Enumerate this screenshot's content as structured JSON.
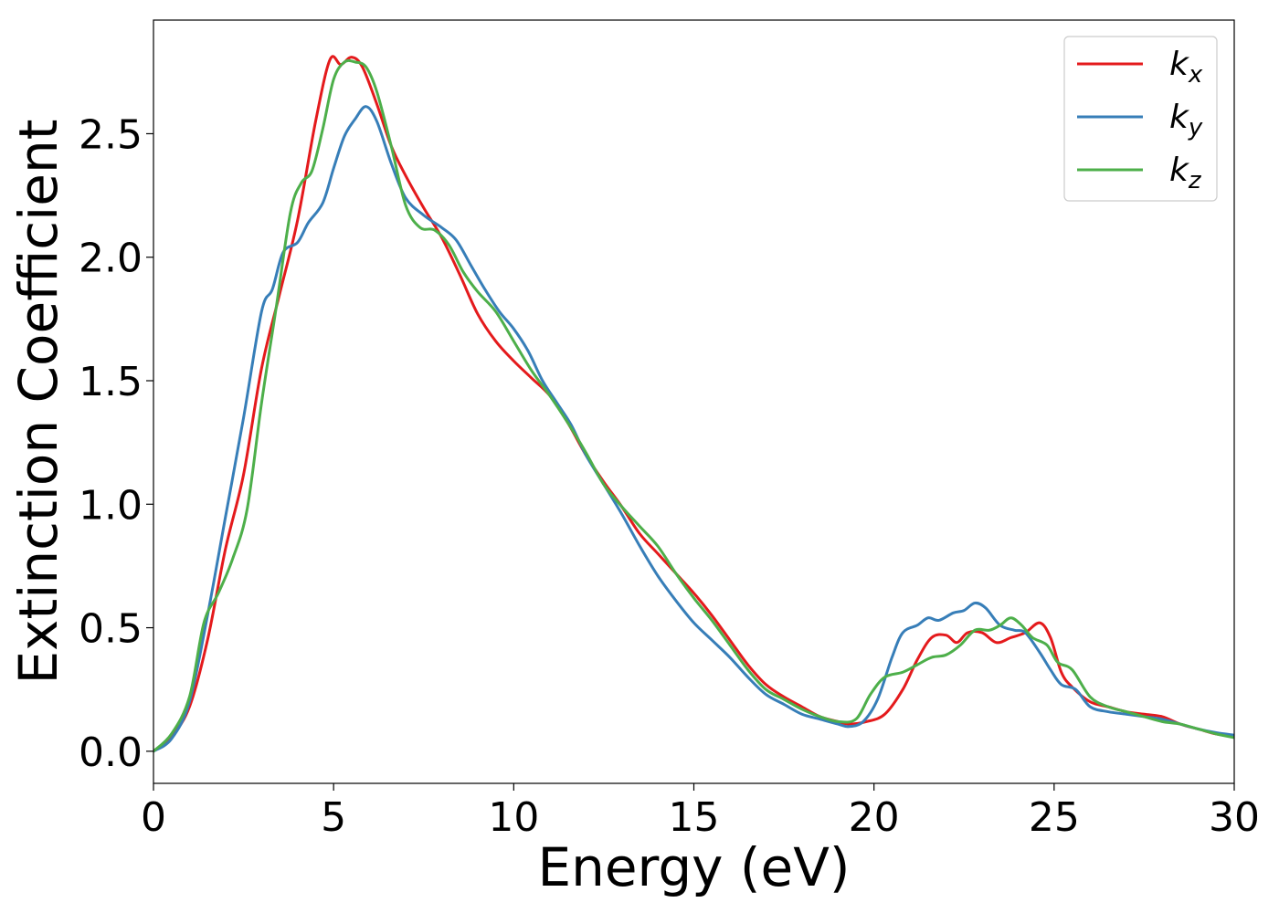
{
  "chart_data": {
    "type": "line",
    "title": "",
    "xlabel": "Energy (eV)",
    "ylabel": "Extinction Coefficient",
    "xlim": [
      0,
      30
    ],
    "ylim": [
      -0.13,
      2.96
    ],
    "xticks": [
      0,
      5,
      10,
      15,
      20,
      25,
      30
    ],
    "xtick_labels": [
      "0",
      "5",
      "10",
      "15",
      "20",
      "25",
      "30"
    ],
    "yticks": [
      0.0,
      0.5,
      1.0,
      1.5,
      2.0,
      2.5
    ],
    "ytick_labels": [
      "0.0",
      "0.5",
      "1.0",
      "1.5",
      "2.0",
      "2.5"
    ],
    "grid": false,
    "legend_position": "top-right",
    "series": [
      {
        "name": "k_x",
        "legend_base": "k",
        "legend_sub": "x",
        "color": "#e41a1c",
        "points": [
          [
            0,
            0.0
          ],
          [
            0.5,
            0.06
          ],
          [
            1.0,
            0.18
          ],
          [
            1.5,
            0.45
          ],
          [
            2.0,
            0.82
          ],
          [
            2.5,
            1.12
          ],
          [
            3.0,
            1.55
          ],
          [
            3.5,
            1.85
          ],
          [
            4.0,
            2.15
          ],
          [
            4.5,
            2.55
          ],
          [
            4.9,
            2.8
          ],
          [
            5.2,
            2.78
          ],
          [
            5.5,
            2.81
          ],
          [
            5.8,
            2.77
          ],
          [
            6.2,
            2.62
          ],
          [
            6.6,
            2.45
          ],
          [
            7.0,
            2.33
          ],
          [
            7.5,
            2.2
          ],
          [
            8.0,
            2.08
          ],
          [
            8.5,
            1.93
          ],
          [
            9.0,
            1.77
          ],
          [
            9.5,
            1.66
          ],
          [
            10.0,
            1.58
          ],
          [
            10.5,
            1.51
          ],
          [
            11.0,
            1.44
          ],
          [
            11.5,
            1.33
          ],
          [
            12.0,
            1.2
          ],
          [
            12.5,
            1.09
          ],
          [
            13.0,
            0.99
          ],
          [
            13.5,
            0.88
          ],
          [
            14.0,
            0.8
          ],
          [
            14.5,
            0.72
          ],
          [
            15.0,
            0.64
          ],
          [
            15.5,
            0.55
          ],
          [
            16.0,
            0.45
          ],
          [
            16.5,
            0.35
          ],
          [
            17.0,
            0.27
          ],
          [
            17.5,
            0.22
          ],
          [
            18.0,
            0.18
          ],
          [
            18.5,
            0.14
          ],
          [
            19.0,
            0.12
          ],
          [
            19.3,
            0.11
          ],
          [
            19.8,
            0.12
          ],
          [
            20.3,
            0.15
          ],
          [
            20.8,
            0.25
          ],
          [
            21.2,
            0.37
          ],
          [
            21.6,
            0.46
          ],
          [
            22.0,
            0.47
          ],
          [
            22.3,
            0.44
          ],
          [
            22.6,
            0.48
          ],
          [
            23.0,
            0.48
          ],
          [
            23.4,
            0.44
          ],
          [
            23.8,
            0.46
          ],
          [
            24.2,
            0.48
          ],
          [
            24.6,
            0.52
          ],
          [
            24.9,
            0.46
          ],
          [
            25.2,
            0.32
          ],
          [
            25.5,
            0.26
          ],
          [
            26.0,
            0.2
          ],
          [
            26.5,
            0.18
          ],
          [
            27.0,
            0.16
          ],
          [
            27.5,
            0.15
          ],
          [
            28.0,
            0.14
          ],
          [
            28.5,
            0.11
          ],
          [
            29.0,
            0.09
          ],
          [
            29.5,
            0.07
          ],
          [
            30.0,
            0.06
          ]
        ]
      },
      {
        "name": "k_y",
        "legend_base": "k",
        "legend_sub": "y",
        "color": "#377eb8",
        "points": [
          [
            0,
            0.0
          ],
          [
            0.5,
            0.05
          ],
          [
            1.0,
            0.2
          ],
          [
            1.5,
            0.55
          ],
          [
            2.0,
            0.95
          ],
          [
            2.5,
            1.35
          ],
          [
            3.0,
            1.78
          ],
          [
            3.3,
            1.87
          ],
          [
            3.6,
            2.02
          ],
          [
            4.0,
            2.06
          ],
          [
            4.3,
            2.14
          ],
          [
            4.7,
            2.22
          ],
          [
            5.0,
            2.36
          ],
          [
            5.3,
            2.49
          ],
          [
            5.6,
            2.56
          ],
          [
            5.9,
            2.61
          ],
          [
            6.2,
            2.55
          ],
          [
            6.6,
            2.38
          ],
          [
            7.0,
            2.24
          ],
          [
            7.5,
            2.17
          ],
          [
            8.0,
            2.12
          ],
          [
            8.4,
            2.07
          ],
          [
            8.8,
            1.97
          ],
          [
            9.2,
            1.87
          ],
          [
            9.6,
            1.78
          ],
          [
            10.0,
            1.71
          ],
          [
            10.4,
            1.62
          ],
          [
            10.8,
            1.5
          ],
          [
            11.2,
            1.41
          ],
          [
            11.6,
            1.32
          ],
          [
            12.0,
            1.2
          ],
          [
            12.5,
            1.08
          ],
          [
            13.0,
            0.96
          ],
          [
            13.5,
            0.83
          ],
          [
            14.0,
            0.71
          ],
          [
            14.5,
            0.61
          ],
          [
            15.0,
            0.52
          ],
          [
            15.5,
            0.45
          ],
          [
            16.0,
            0.38
          ],
          [
            16.5,
            0.3
          ],
          [
            17.0,
            0.23
          ],
          [
            17.5,
            0.19
          ],
          [
            18.0,
            0.15
          ],
          [
            18.5,
            0.13
          ],
          [
            19.0,
            0.11
          ],
          [
            19.3,
            0.1
          ],
          [
            19.7,
            0.12
          ],
          [
            20.1,
            0.21
          ],
          [
            20.5,
            0.38
          ],
          [
            20.8,
            0.48
          ],
          [
            21.2,
            0.51
          ],
          [
            21.5,
            0.54
          ],
          [
            21.8,
            0.53
          ],
          [
            22.2,
            0.56
          ],
          [
            22.5,
            0.57
          ],
          [
            22.8,
            0.6
          ],
          [
            23.1,
            0.58
          ],
          [
            23.5,
            0.51
          ],
          [
            23.9,
            0.49
          ],
          [
            24.2,
            0.48
          ],
          [
            24.6,
            0.4
          ],
          [
            24.9,
            0.33
          ],
          [
            25.2,
            0.27
          ],
          [
            25.6,
            0.25
          ],
          [
            26.0,
            0.18
          ],
          [
            26.5,
            0.16
          ],
          [
            27.0,
            0.15
          ],
          [
            27.5,
            0.14
          ],
          [
            28.0,
            0.13
          ],
          [
            28.5,
            0.11
          ],
          [
            29.0,
            0.09
          ],
          [
            29.5,
            0.075
          ],
          [
            30.0,
            0.065
          ]
        ]
      },
      {
        "name": "k_z",
        "legend_base": "k",
        "legend_sub": "z",
        "color": "#4daf4a",
        "points": [
          [
            0,
            0.0
          ],
          [
            0.5,
            0.07
          ],
          [
            1.0,
            0.22
          ],
          [
            1.4,
            0.52
          ],
          [
            1.8,
            0.64
          ],
          [
            2.2,
            0.78
          ],
          [
            2.6,
            0.98
          ],
          [
            3.0,
            1.41
          ],
          [
            3.4,
            1.79
          ],
          [
            3.8,
            2.18
          ],
          [
            4.1,
            2.3
          ],
          [
            4.4,
            2.35
          ],
          [
            4.7,
            2.52
          ],
          [
            5.0,
            2.72
          ],
          [
            5.3,
            2.79
          ],
          [
            5.6,
            2.79
          ],
          [
            5.9,
            2.77
          ],
          [
            6.2,
            2.67
          ],
          [
            6.6,
            2.45
          ],
          [
            7.0,
            2.21
          ],
          [
            7.4,
            2.12
          ],
          [
            7.8,
            2.11
          ],
          [
            8.2,
            2.05
          ],
          [
            8.6,
            1.94
          ],
          [
            9.0,
            1.86
          ],
          [
            9.5,
            1.78
          ],
          [
            10.0,
            1.66
          ],
          [
            10.5,
            1.54
          ],
          [
            11.0,
            1.44
          ],
          [
            11.5,
            1.33
          ],
          [
            12.0,
            1.21
          ],
          [
            12.5,
            1.08
          ],
          [
            13.0,
            0.99
          ],
          [
            13.5,
            0.91
          ],
          [
            14.0,
            0.83
          ],
          [
            14.5,
            0.72
          ],
          [
            15.0,
            0.62
          ],
          [
            15.5,
            0.53
          ],
          [
            16.0,
            0.43
          ],
          [
            16.5,
            0.33
          ],
          [
            17.0,
            0.25
          ],
          [
            17.5,
            0.21
          ],
          [
            18.0,
            0.17
          ],
          [
            18.5,
            0.14
          ],
          [
            19.0,
            0.12
          ],
          [
            19.5,
            0.13
          ],
          [
            19.9,
            0.23
          ],
          [
            20.3,
            0.3
          ],
          [
            20.8,
            0.32
          ],
          [
            21.2,
            0.35
          ],
          [
            21.6,
            0.38
          ],
          [
            22.0,
            0.39
          ],
          [
            22.4,
            0.43
          ],
          [
            22.8,
            0.49
          ],
          [
            23.2,
            0.49
          ],
          [
            23.5,
            0.51
          ],
          [
            23.8,
            0.54
          ],
          [
            24.1,
            0.51
          ],
          [
            24.4,
            0.46
          ],
          [
            24.8,
            0.43
          ],
          [
            25.1,
            0.36
          ],
          [
            25.5,
            0.33
          ],
          [
            26.0,
            0.22
          ],
          [
            26.5,
            0.18
          ],
          [
            27.0,
            0.16
          ],
          [
            27.5,
            0.14
          ],
          [
            28.0,
            0.12
          ],
          [
            28.5,
            0.11
          ],
          [
            29.0,
            0.09
          ],
          [
            29.5,
            0.07
          ],
          [
            30.0,
            0.055
          ]
        ]
      }
    ]
  }
}
